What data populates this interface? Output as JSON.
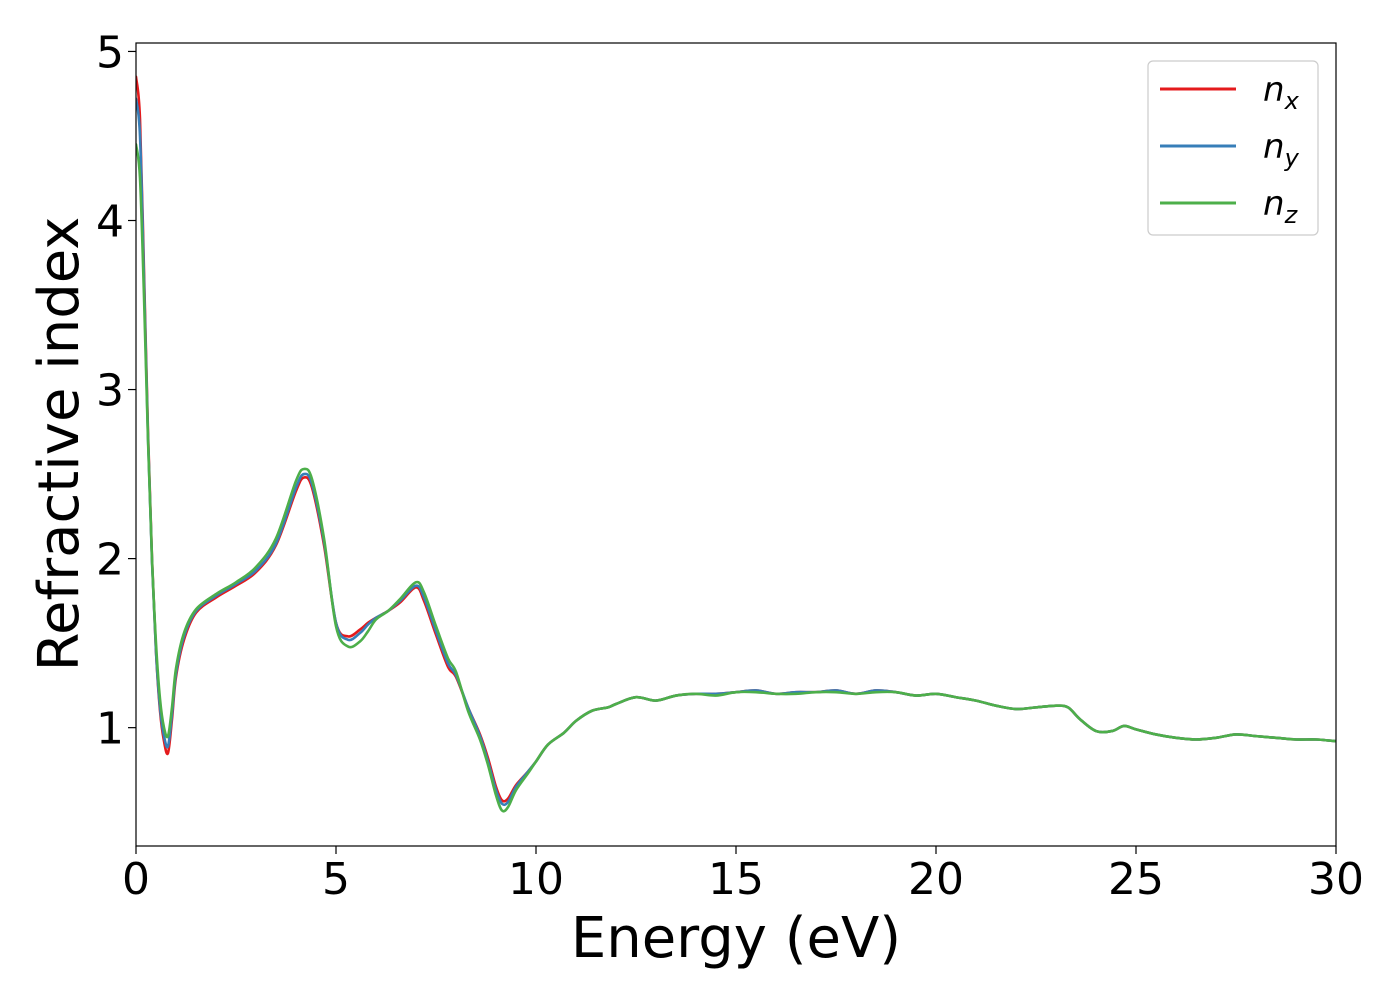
{
  "chart_data": {
    "type": "line",
    "xlabel": "Energy (eV)",
    "ylabel": "Refractive index",
    "xlim": [
      0,
      30
    ],
    "ylim": [
      0.3,
      5.05
    ],
    "xticks": [
      0,
      5,
      10,
      15,
      20,
      25,
      30
    ],
    "yticks": [
      1,
      2,
      3,
      4,
      5
    ],
    "grid": false,
    "legend_position": "top-right",
    "series": [
      {
        "name": "n_x",
        "legend_main": "n",
        "legend_sub": "x",
        "color": "#e41a1c",
        "x": [
          0,
          0.1,
          0.2,
          0.3,
          0.4,
          0.5,
          0.6,
          0.7,
          0.8,
          0.9,
          1.0,
          1.2,
          1.5,
          2.0,
          2.5,
          3.0,
          3.5,
          4.0,
          4.2,
          4.4,
          4.7,
          5.0,
          5.3,
          5.6,
          5.8,
          6.0,
          6.3,
          6.6,
          7.0,
          7.2,
          7.5,
          7.8,
          8.0,
          8.3,
          8.6,
          8.8,
          9.0,
          9.15,
          9.3,
          9.5,
          9.8,
          10.0,
          10.3,
          10.7,
          11.0,
          11.4,
          11.8,
          12.0,
          12.5,
          13.0,
          13.5,
          14.0,
          14.5,
          15.0,
          15.5,
          16.0,
          16.5,
          17.0,
          17.5,
          18.0,
          18.5,
          19.0,
          19.5,
          20.0,
          20.5,
          21.0,
          21.5,
          22.0,
          22.5,
          23.0,
          23.3,
          23.6,
          24.0,
          24.4,
          24.7,
          25.0,
          25.5,
          26.0,
          26.5,
          27.0,
          27.5,
          28.0,
          28.5,
          29.0,
          29.5,
          30.0
        ],
        "y": [
          4.85,
          4.6,
          3.7,
          2.75,
          2.0,
          1.45,
          1.1,
          0.92,
          0.85,
          1.05,
          1.3,
          1.52,
          1.68,
          1.77,
          1.84,
          1.92,
          2.08,
          2.4,
          2.48,
          2.42,
          2.08,
          1.62,
          1.54,
          1.58,
          1.62,
          1.65,
          1.69,
          1.74,
          1.83,
          1.75,
          1.55,
          1.36,
          1.3,
          1.12,
          0.96,
          0.82,
          0.65,
          0.57,
          0.58,
          0.66,
          0.74,
          0.8,
          0.9,
          0.97,
          1.04,
          1.1,
          1.12,
          1.14,
          1.18,
          1.16,
          1.19,
          1.2,
          1.2,
          1.21,
          1.22,
          1.2,
          1.21,
          1.21,
          1.22,
          1.2,
          1.22,
          1.21,
          1.19,
          1.2,
          1.18,
          1.16,
          1.13,
          1.11,
          1.12,
          1.13,
          1.12,
          1.05,
          0.98,
          0.98,
          1.01,
          0.99,
          0.96,
          0.94,
          0.93,
          0.94,
          0.96,
          0.95,
          0.94,
          0.93,
          0.93,
          0.92
        ]
      },
      {
        "name": "n_y",
        "legend_main": "n",
        "legend_sub": "y",
        "color": "#377eb8",
        "x": [
          0,
          0.1,
          0.2,
          0.3,
          0.4,
          0.5,
          0.6,
          0.7,
          0.8,
          0.9,
          1.0,
          1.2,
          1.5,
          2.0,
          2.5,
          3.0,
          3.5,
          4.0,
          4.2,
          4.4,
          4.7,
          5.0,
          5.3,
          5.6,
          5.8,
          6.0,
          6.3,
          6.6,
          7.0,
          7.2,
          7.5,
          7.8,
          8.0,
          8.3,
          8.6,
          8.8,
          9.0,
          9.15,
          9.3,
          9.5,
          9.8,
          10.0,
          10.3,
          10.7,
          11.0,
          11.4,
          11.8,
          12.0,
          12.5,
          13.0,
          13.5,
          14.0,
          14.5,
          15.0,
          15.5,
          16.0,
          16.5,
          17.0,
          17.5,
          18.0,
          18.5,
          19.0,
          19.5,
          20.0,
          20.5,
          21.0,
          21.5,
          22.0,
          22.5,
          23.0,
          23.3,
          23.6,
          24.0,
          24.4,
          24.7,
          25.0,
          25.5,
          26.0,
          26.5,
          27.0,
          27.5,
          28.0,
          28.5,
          29.0,
          29.5,
          30.0
        ],
        "y": [
          4.72,
          4.5,
          3.65,
          2.72,
          1.98,
          1.45,
          1.12,
          0.95,
          0.89,
          1.08,
          1.32,
          1.54,
          1.69,
          1.78,
          1.85,
          1.93,
          2.09,
          2.42,
          2.5,
          2.44,
          2.1,
          1.62,
          1.52,
          1.56,
          1.61,
          1.65,
          1.69,
          1.75,
          1.84,
          1.77,
          1.57,
          1.38,
          1.31,
          1.12,
          0.95,
          0.8,
          0.63,
          0.55,
          0.56,
          0.65,
          0.74,
          0.8,
          0.9,
          0.97,
          1.04,
          1.1,
          1.12,
          1.14,
          1.18,
          1.16,
          1.19,
          1.2,
          1.2,
          1.21,
          1.22,
          1.2,
          1.21,
          1.21,
          1.22,
          1.2,
          1.22,
          1.21,
          1.19,
          1.2,
          1.18,
          1.16,
          1.13,
          1.11,
          1.12,
          1.13,
          1.12,
          1.05,
          0.98,
          0.98,
          1.01,
          0.99,
          0.96,
          0.94,
          0.93,
          0.94,
          0.96,
          0.95,
          0.94,
          0.93,
          0.93,
          0.92
        ]
      },
      {
        "name": "n_z",
        "legend_main": "n",
        "legend_sub": "z",
        "color": "#4daf4a",
        "x": [
          0,
          0.1,
          0.2,
          0.3,
          0.4,
          0.5,
          0.6,
          0.7,
          0.8,
          0.9,
          1.0,
          1.2,
          1.5,
          2.0,
          2.5,
          3.0,
          3.5,
          4.0,
          4.2,
          4.4,
          4.7,
          5.0,
          5.3,
          5.6,
          5.8,
          6.0,
          6.3,
          6.6,
          7.0,
          7.2,
          7.5,
          7.8,
          8.0,
          8.3,
          8.6,
          8.8,
          9.0,
          9.15,
          9.3,
          9.5,
          9.8,
          10.0,
          10.3,
          10.7,
          11.0,
          11.4,
          11.8,
          12.0,
          12.5,
          13.0,
          13.5,
          14.0,
          14.5,
          15.0,
          15.5,
          16.0,
          16.5,
          17.0,
          17.5,
          18.0,
          18.5,
          19.0,
          19.5,
          20.0,
          20.5,
          21.0,
          21.5,
          22.0,
          22.5,
          23.0,
          23.3,
          23.6,
          24.0,
          24.4,
          24.7,
          25.0,
          25.5,
          26.0,
          26.5,
          27.0,
          27.5,
          28.0,
          28.5,
          29.0,
          29.5,
          30.0
        ],
        "y": [
          4.45,
          4.25,
          3.55,
          2.7,
          2.0,
          1.5,
          1.17,
          1.0,
          0.95,
          1.12,
          1.35,
          1.56,
          1.7,
          1.79,
          1.86,
          1.95,
          2.12,
          2.46,
          2.53,
          2.47,
          2.12,
          1.6,
          1.48,
          1.51,
          1.57,
          1.64,
          1.69,
          1.76,
          1.86,
          1.8,
          1.6,
          1.41,
          1.33,
          1.1,
          0.93,
          0.78,
          0.6,
          0.51,
          0.53,
          0.63,
          0.73,
          0.8,
          0.9,
          0.97,
          1.04,
          1.1,
          1.12,
          1.14,
          1.18,
          1.16,
          1.19,
          1.2,
          1.19,
          1.21,
          1.21,
          1.2,
          1.2,
          1.21,
          1.21,
          1.2,
          1.21,
          1.21,
          1.19,
          1.2,
          1.18,
          1.16,
          1.13,
          1.11,
          1.12,
          1.13,
          1.12,
          1.05,
          0.98,
          0.98,
          1.01,
          0.99,
          0.96,
          0.94,
          0.93,
          0.94,
          0.96,
          0.95,
          0.94,
          0.93,
          0.93,
          0.92
        ]
      }
    ]
  }
}
